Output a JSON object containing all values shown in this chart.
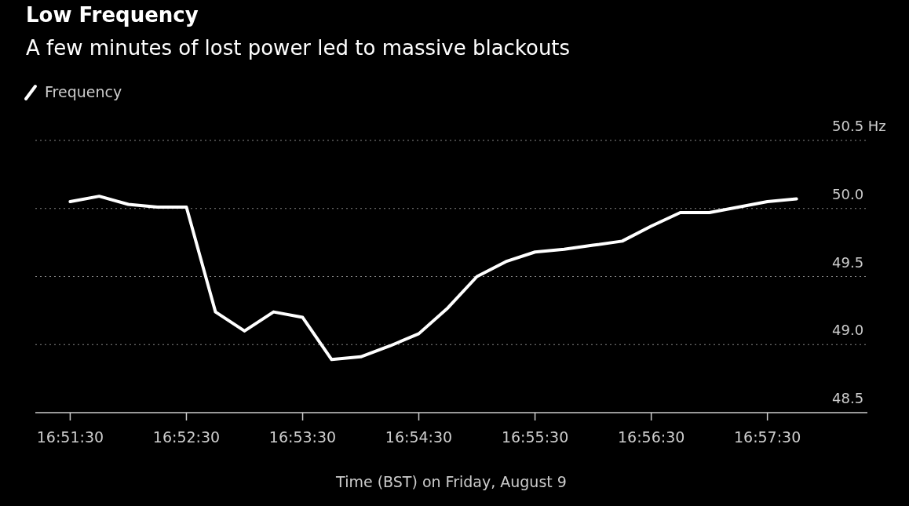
{
  "chart_data": {
    "type": "line",
    "title": "Low Frequency",
    "subtitle": "A few minutes of lost power led to massive blackouts",
    "xlabel": "Time (BST) on Friday, August 9",
    "x": [
      16.85833,
      16.8625,
      16.86667,
      16.87083,
      16.875,
      16.87917,
      16.88333,
      16.8875,
      16.89167,
      16.89583,
      16.9,
      16.90417,
      16.90833,
      16.9125,
      16.91667,
      16.92083,
      16.925,
      16.92917,
      16.93333,
      16.9375,
      16.94167,
      16.94583,
      16.95,
      16.95417,
      16.95833,
      16.9625
    ],
    "series": [
      {
        "name": "Frequency",
        "color": "#ffffff",
        "values": [
          50.05,
          50.09,
          50.03,
          50.01,
          50.01,
          49.24,
          49.1,
          49.24,
          49.2,
          48.89,
          48.91,
          48.99,
          49.08,
          49.27,
          49.5,
          49.61,
          49.68,
          49.7,
          49.73,
          49.76,
          49.87,
          49.97,
          49.97,
          50.01,
          50.05,
          50.07
        ]
      }
    ],
    "xlim": [
      16.85333,
      16.97267
    ],
    "ylim": [
      48.5,
      50.5
    ],
    "xticks": [
      {
        "value": 16.85833,
        "label": "16:51:30"
      },
      {
        "value": 16.875,
        "label": "16:52:30"
      },
      {
        "value": 16.89167,
        "label": "16:53:30"
      },
      {
        "value": 16.90833,
        "label": "16:54:30"
      },
      {
        "value": 16.925,
        "label": "16:55:30"
      },
      {
        "value": 16.94167,
        "label": "16:56:30"
      },
      {
        "value": 16.95833,
        "label": "16:57:30"
      }
    ],
    "yticks": [
      48.5,
      {
        "value": 49.0,
        "label": "49.0"
      },
      49.5,
      {
        "value": 50.0,
        "label": "50.0"
      },
      {
        "value": 50.5,
        "label": "50.5 Hz"
      }
    ],
    "grid": "y",
    "legend": "top left",
    "marker": "none",
    "line_style": "solid"
  }
}
